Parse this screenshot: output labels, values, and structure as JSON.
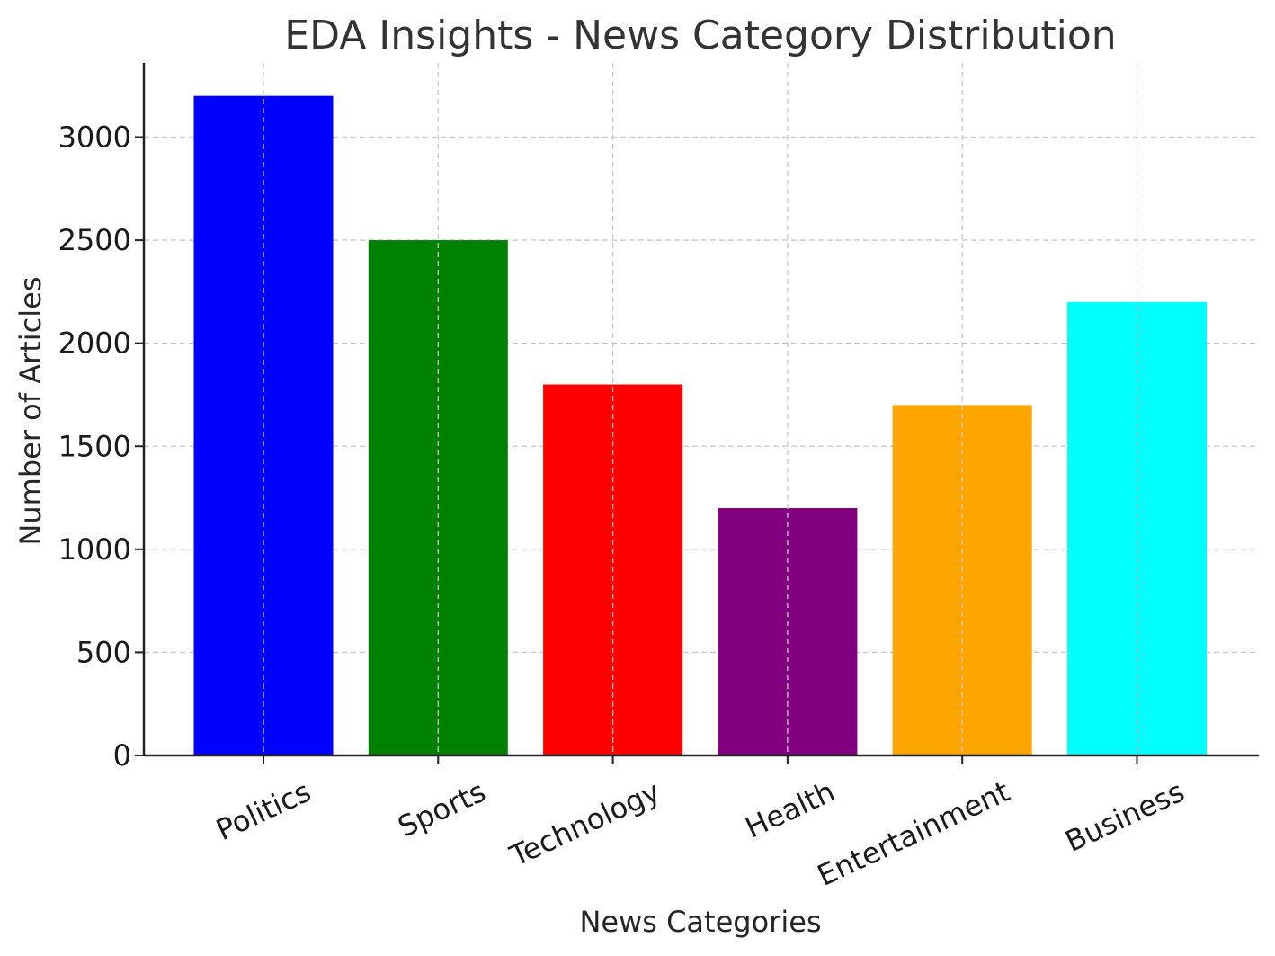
{
  "chart_data": {
    "type": "bar",
    "title": "EDA Insights - News Category Distribution",
    "xlabel": "News Categories",
    "ylabel": "Number of Articles",
    "categories": [
      "Politics",
      "Sports",
      "Technology",
      "Health",
      "Entertainment",
      "Business"
    ],
    "values": [
      3200,
      2500,
      1800,
      1200,
      1700,
      2200
    ],
    "colors": [
      "#0000ff",
      "#008000",
      "#ff0000",
      "#800080",
      "#ffa500",
      "#00ffff"
    ],
    "ylim": [
      0,
      3360
    ],
    "yticks": [
      0,
      500,
      1000,
      1500,
      2000,
      2500,
      3000
    ],
    "grid": true
  }
}
